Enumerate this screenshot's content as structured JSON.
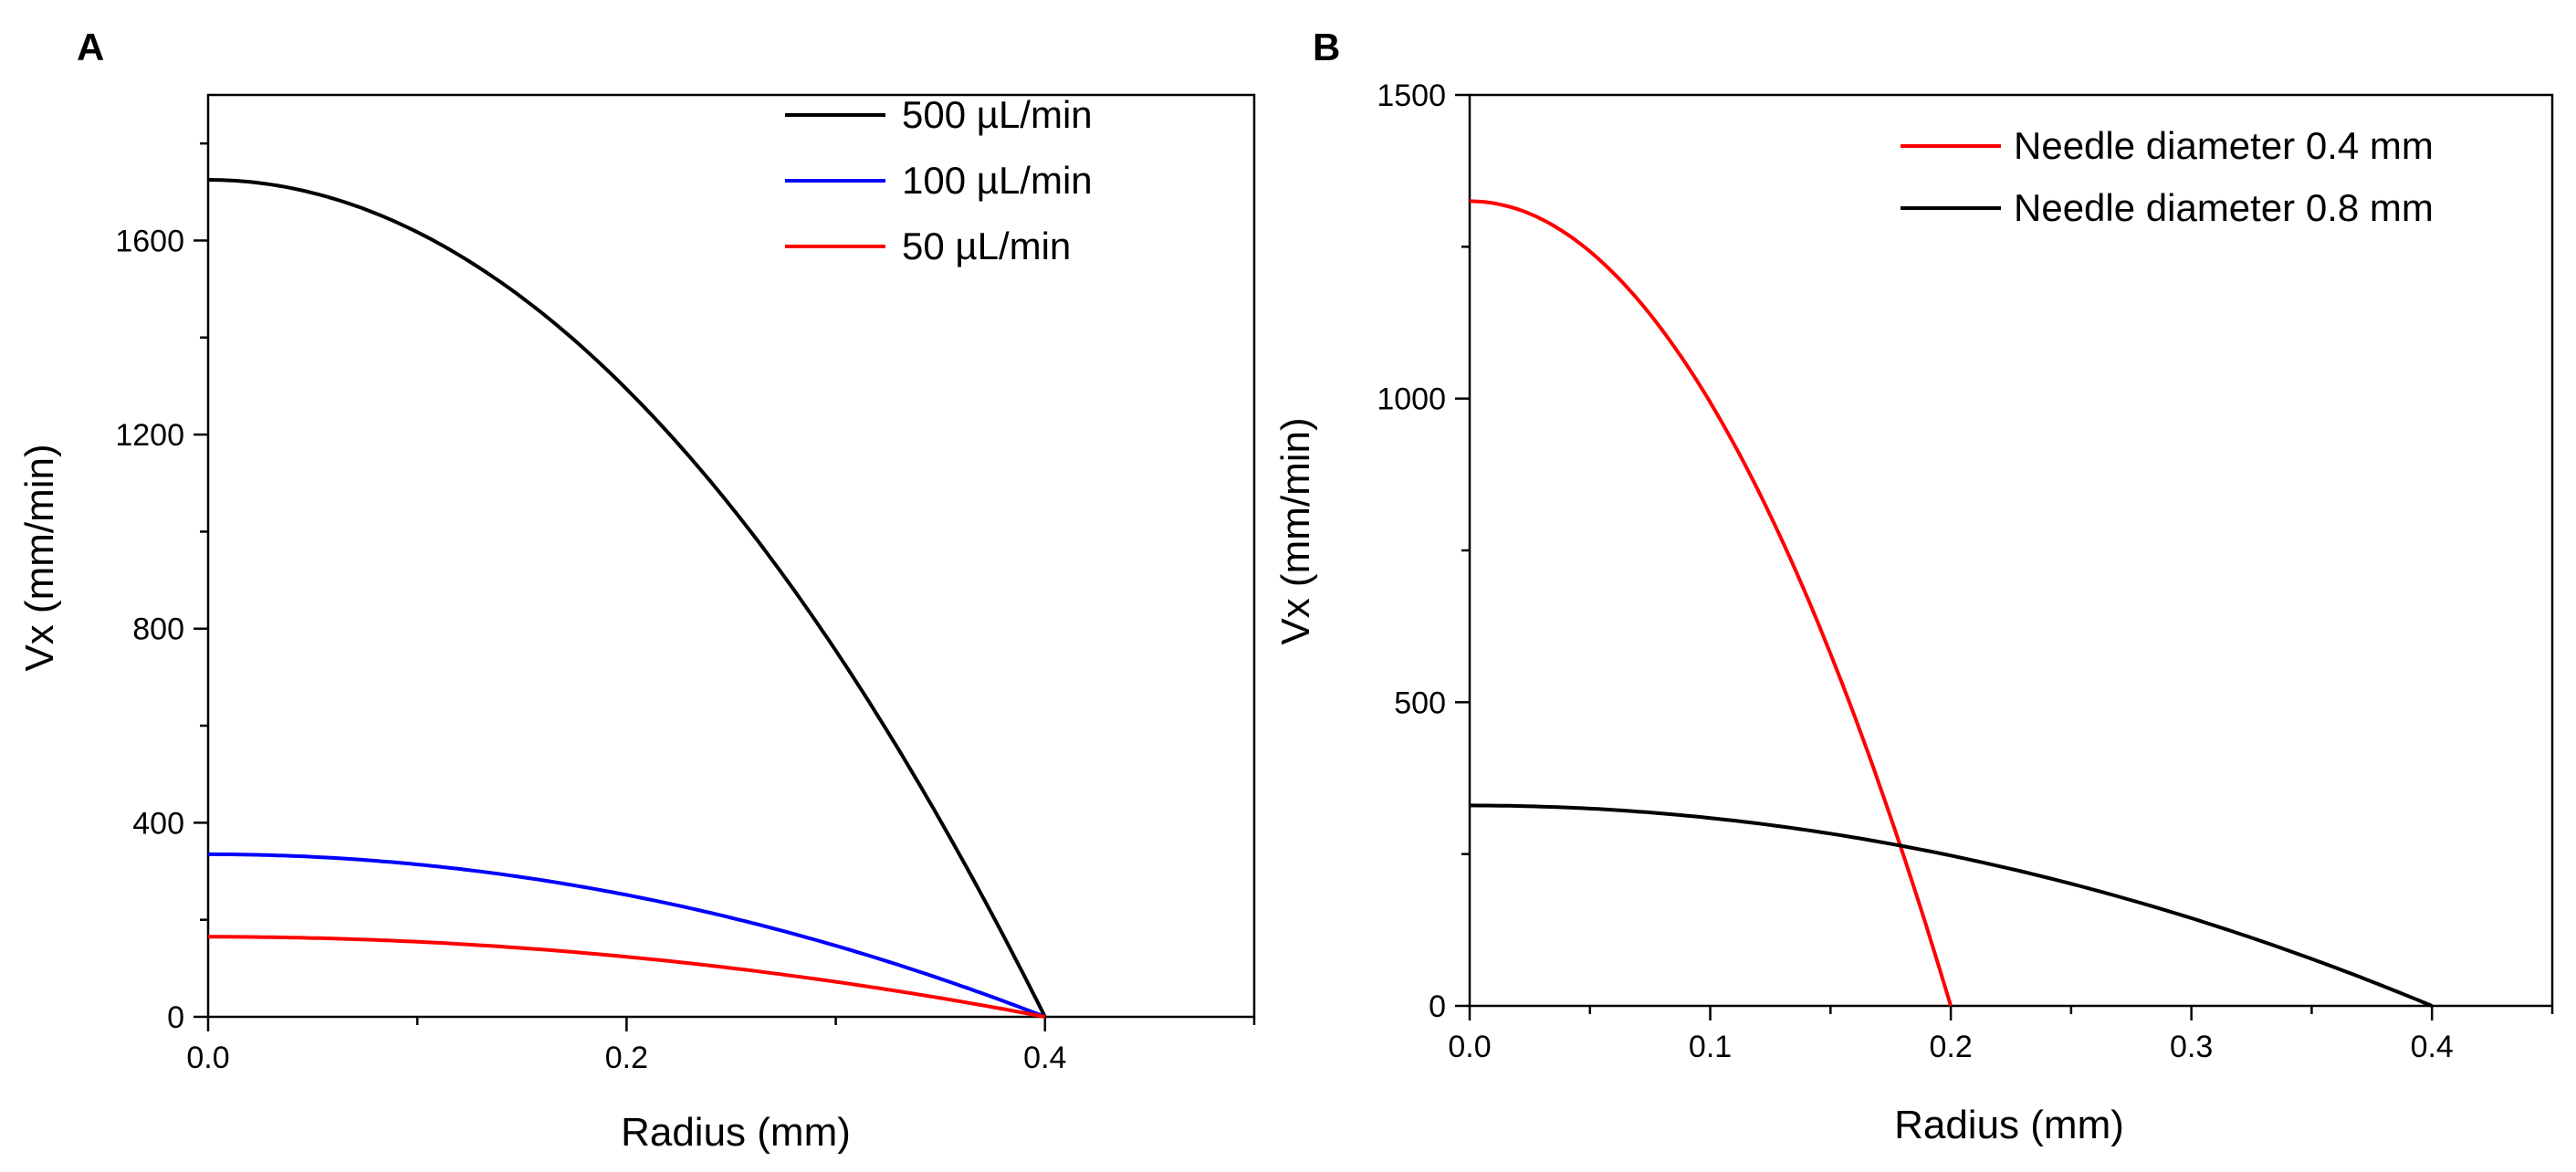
{
  "chart_data": [
    {
      "panel": "A",
      "type": "line",
      "title": "",
      "xlabel": "Radius (mm)",
      "ylabel": "Vx (mm/min)",
      "xlim": [
        0,
        0.5
      ],
      "ylim": [
        0,
        1900
      ],
      "xticks": [
        0.0,
        0.2,
        0.4
      ],
      "xtick_labels": [
        "0.0",
        "0.2",
        "0.4"
      ],
      "yticks": [
        0,
        400,
        800,
        1200,
        1600
      ],
      "ytick_labels": [
        "0",
        "400",
        "800",
        "1200",
        "1600"
      ],
      "legend_position": "top-right",
      "series": [
        {
          "name": "500 µL/min",
          "color": "#000000",
          "profile": "parabolic",
          "peak": 1725,
          "radius": 0.4
        },
        {
          "name": "100 µL/min",
          "color": "#0000ff",
          "profile": "parabolic",
          "peak": 335,
          "radius": 0.4
        },
        {
          "name": "50  µL/min",
          "color": "#ff0000",
          "profile": "parabolic",
          "peak": 165,
          "radius": 0.4
        }
      ]
    },
    {
      "panel": "B",
      "type": "line",
      "title": "",
      "xlabel": "Radius (mm)",
      "ylabel": "Vx (mm/min)",
      "xlim": [
        0,
        0.45
      ],
      "ylim": [
        0,
        1500
      ],
      "xticks": [
        0.0,
        0.1,
        0.2,
        0.3,
        0.4
      ],
      "xtick_labels": [
        "0.0",
        "0.1",
        "0.2",
        "0.3",
        "0.4"
      ],
      "yticks": [
        0,
        500,
        1000,
        1500
      ],
      "ytick_labels": [
        "0",
        "500",
        "1000",
        "1500"
      ],
      "legend_position": "top-right",
      "series": [
        {
          "name": "Needle diameter 0.4 mm",
          "color": "#ff0000",
          "profile": "parabolic",
          "peak": 1325,
          "radius": 0.2
        },
        {
          "name": "Needle diameter 0.8 mm",
          "color": "#000000",
          "profile": "parabolic",
          "peak": 330,
          "radius": 0.4
        }
      ]
    }
  ]
}
